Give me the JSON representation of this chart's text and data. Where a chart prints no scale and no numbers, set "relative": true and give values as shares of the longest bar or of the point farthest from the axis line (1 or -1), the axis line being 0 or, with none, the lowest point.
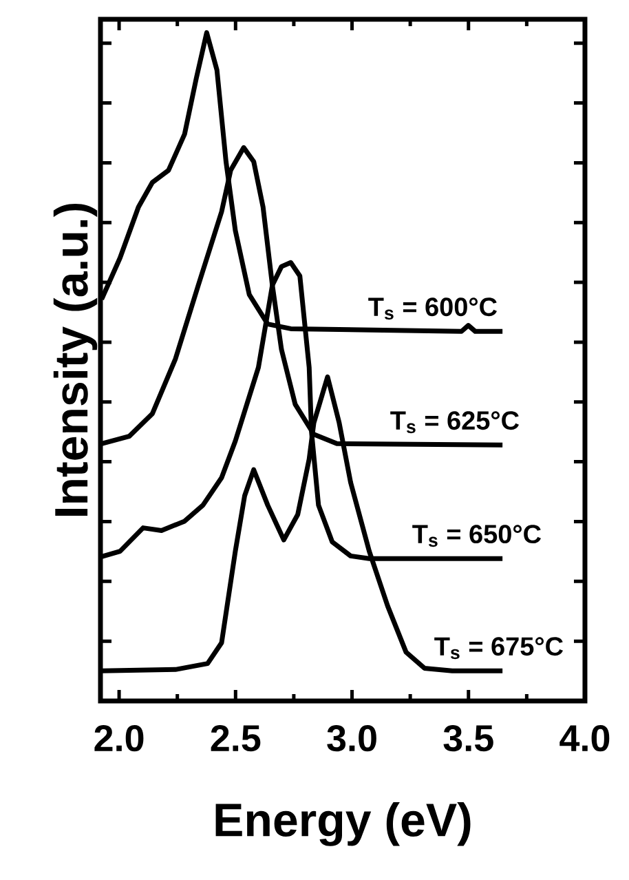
{
  "chart_data": {
    "type": "line",
    "relative": true,
    "xlabel": "Energy (eV)",
    "ylabel": "Intensity (a.u.)",
    "xlim": [
      1.92,
      4.0
    ],
    "xticks": [
      {
        "value": 2.0,
        "label": "2.0"
      },
      {
        "value": 2.5,
        "label": "2.5"
      },
      {
        "value": 3.0,
        "label": "3.0"
      },
      {
        "value": 3.5,
        "label": "3.5"
      },
      {
        "value": 4.0,
        "label": "4.0"
      }
    ],
    "tick_labels": "x",
    "legend": "right",
    "series": [
      {
        "name": "T$_{s}$ = 600°C",
        "color": "#000000",
        "x": [
          1.925,
          2.004,
          2.083,
          2.143,
          2.212,
          2.281,
          2.331,
          2.376,
          2.42,
          2.459,
          2.499,
          2.559,
          2.638,
          2.737,
          3.47,
          3.499,
          3.529,
          3.646
        ],
        "values": [
          0.601,
          0.663,
          0.739,
          0.776,
          0.794,
          0.848,
          0.931,
          1.0,
          0.944,
          0.807,
          0.704,
          0.608,
          0.564,
          0.557,
          0.553,
          0.562,
          0.553,
          0.553
        ]
      },
      {
        "name": "T$_{s}$ = 625°C",
        "color": "#000000",
        "x": [
          1.925,
          2.043,
          2.143,
          2.242,
          2.34,
          2.44,
          2.479,
          2.535,
          2.578,
          2.618,
          2.658,
          2.697,
          2.756,
          2.836,
          2.935,
          3.646
        ],
        "values": [
          0.385,
          0.396,
          0.43,
          0.512,
          0.622,
          0.732,
          0.794,
          0.828,
          0.807,
          0.739,
          0.622,
          0.526,
          0.444,
          0.399,
          0.385,
          0.383
        ]
      },
      {
        "name": "T$_{s}$ = 650°C",
        "color": "#000000",
        "x": [
          1.925,
          2.004,
          2.103,
          2.182,
          2.281,
          2.36,
          2.44,
          2.499,
          2.598,
          2.658,
          2.697,
          2.737,
          2.776,
          2.816,
          2.826,
          2.856,
          2.915,
          2.994,
          3.074,
          3.646
        ],
        "values": [
          0.216,
          0.224,
          0.259,
          0.255,
          0.269,
          0.293,
          0.334,
          0.389,
          0.499,
          0.622,
          0.65,
          0.656,
          0.636,
          0.499,
          0.403,
          0.293,
          0.238,
          0.217,
          0.213,
          0.213
        ]
      },
      {
        "name": "T$_{s}$ = 675°C",
        "color": "#000000",
        "x": [
          1.925,
          2.242,
          2.38,
          2.44,
          2.499,
          2.539,
          2.578,
          2.638,
          2.707,
          2.767,
          2.816,
          2.836,
          2.895,
          2.945,
          2.994,
          3.074,
          3.153,
          3.232,
          3.311,
          3.43,
          3.646
        ],
        "values": [
          0.045,
          0.047,
          0.056,
          0.087,
          0.224,
          0.307,
          0.346,
          0.293,
          0.241,
          0.279,
          0.362,
          0.416,
          0.485,
          0.416,
          0.327,
          0.224,
          0.142,
          0.073,
          0.049,
          0.045,
          0.045
        ]
      }
    ]
  }
}
